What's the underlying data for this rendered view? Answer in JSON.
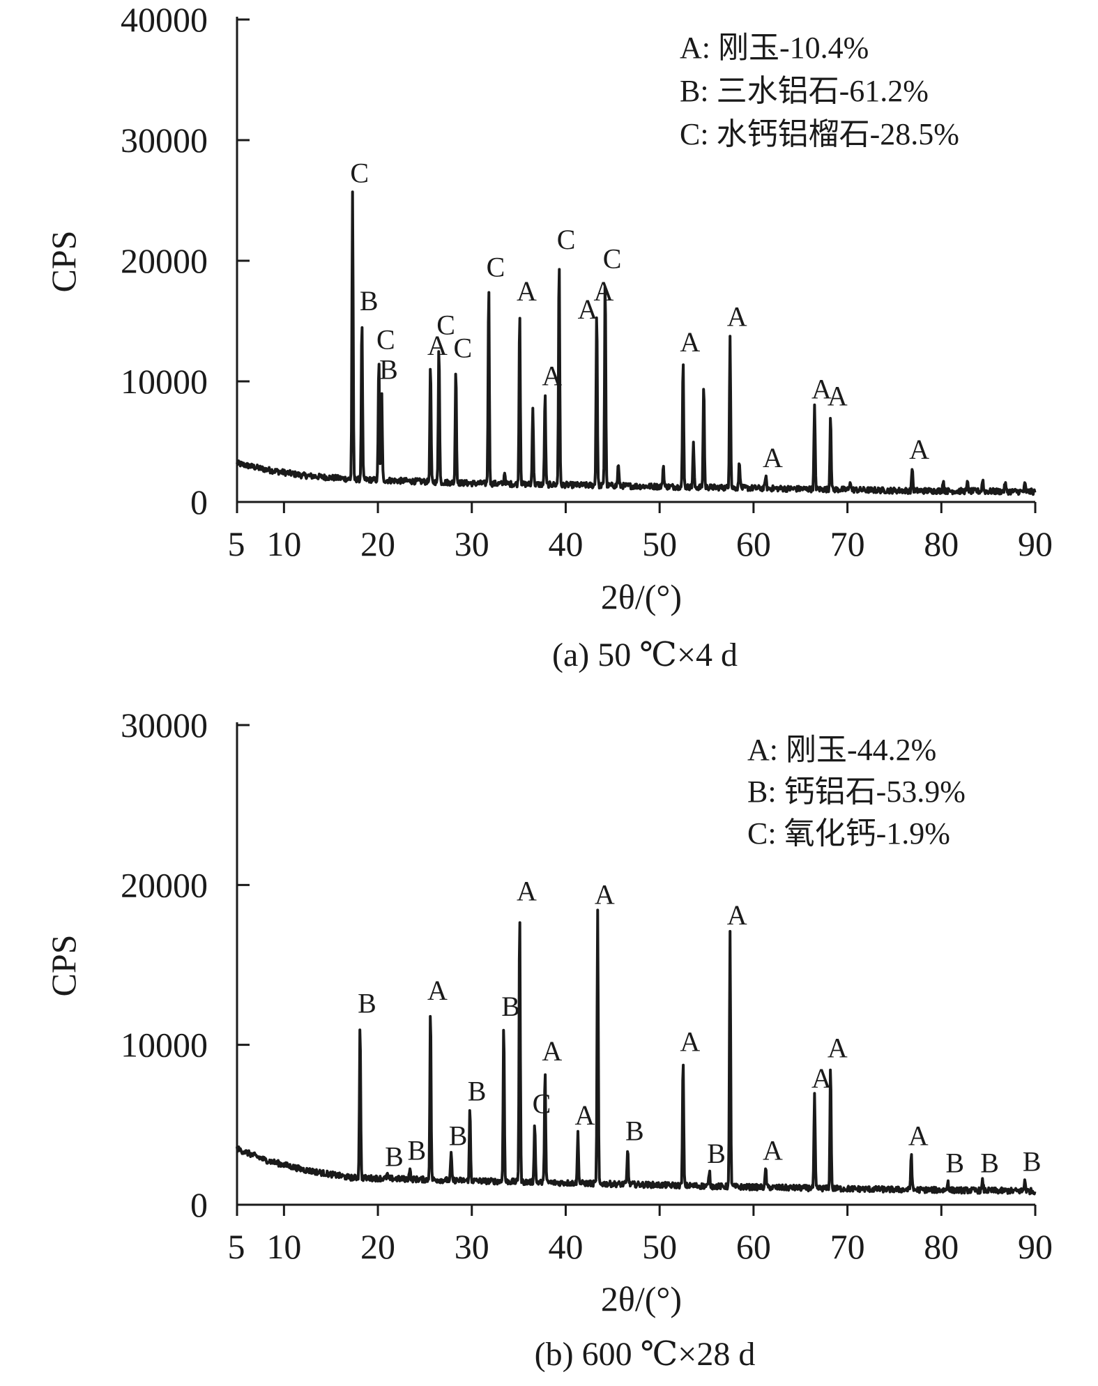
{
  "chart_data": [
    {
      "type": "line",
      "caption": "(a) 50 ℃×4 d",
      "xlabel": "2θ/(°)",
      "ylabel": "CPS",
      "xlim": [
        5,
        90
      ],
      "ylim": [
        0,
        40000
      ],
      "xticks": [
        5,
        10,
        20,
        30,
        40,
        50,
        60,
        70,
        80,
        90
      ],
      "yticks": [
        0,
        10000,
        20000,
        30000,
        40000
      ],
      "legend_position": "top-right",
      "legend": [
        "A: 刚玉-10.4%",
        "B: 三水铝石-61.2%",
        "C: 水钙铝榴石-28.5%"
      ],
      "background": [
        [
          5,
          3200
        ],
        [
          8,
          2700
        ],
        [
          12,
          2200
        ],
        [
          17,
          1900
        ],
        [
          30,
          1550
        ],
        [
          45,
          1350
        ],
        [
          60,
          1150
        ],
        [
          75,
          950
        ],
        [
          90,
          850
        ]
      ],
      "peaks": [
        {
          "x": 17.3,
          "y": 25800,
          "label": "C"
        },
        {
          "x": 18.3,
          "y": 15200,
          "label": "B"
        },
        {
          "x": 20.1,
          "y": 12000,
          "label": "C"
        },
        {
          "x": 20.4,
          "y": 9500,
          "label": "B"
        },
        {
          "x": 25.6,
          "y": 11500,
          "label": "A"
        },
        {
          "x": 26.5,
          "y": 13200,
          "label": "C"
        },
        {
          "x": 28.3,
          "y": 11300,
          "label": "C"
        },
        {
          "x": 31.8,
          "y": 18000,
          "label": "C"
        },
        {
          "x": 33.5,
          "y": 2500,
          "label": ""
        },
        {
          "x": 35.1,
          "y": 16000,
          "label": "A"
        },
        {
          "x": 36.5,
          "y": 8000,
          "label": ""
        },
        {
          "x": 37.8,
          "y": 9000,
          "label": "A"
        },
        {
          "x": 39.3,
          "y": 20300,
          "label": "C"
        },
        {
          "x": 43.3,
          "y": 16000,
          "label": "A"
        },
        {
          "x": 44.2,
          "y": 18700,
          "label": "C"
        },
        {
          "x": 45.6,
          "y": 3200,
          "label": ""
        },
        {
          "x": 50.4,
          "y": 3000,
          "label": ""
        },
        {
          "x": 52.5,
          "y": 11800,
          "label": "A"
        },
        {
          "x": 53.6,
          "y": 4800,
          "label": ""
        },
        {
          "x": 54.7,
          "y": 9900,
          "label": ""
        },
        {
          "x": 57.5,
          "y": 13900,
          "label": "A"
        },
        {
          "x": 58.5,
          "y": 3400,
          "label": ""
        },
        {
          "x": 61.3,
          "y": 2200,
          "label": "A"
        },
        {
          "x": 66.5,
          "y": 7900,
          "label": "A"
        },
        {
          "x": 68.2,
          "y": 7300,
          "label": "A"
        },
        {
          "x": 70.3,
          "y": 1800,
          "label": ""
        },
        {
          "x": 76.9,
          "y": 2900,
          "label": "A"
        },
        {
          "x": 80.2,
          "y": 1800,
          "label": ""
        },
        {
          "x": 82.8,
          "y": 1700,
          "label": ""
        },
        {
          "x": 84.4,
          "y": 1900,
          "label": ""
        },
        {
          "x": 86.8,
          "y": 1600,
          "label": ""
        },
        {
          "x": 88.9,
          "y": 1500,
          "label": ""
        }
      ],
      "extra_labels": [
        {
          "x": 41.6,
          "y": 14500,
          "label": "A"
        }
      ]
    },
    {
      "type": "line",
      "caption": "(b) 600 ℃×28 d",
      "xlabel": "2θ/(°)",
      "ylabel": "CPS",
      "xlim": [
        5,
        90
      ],
      "ylim": [
        0,
        30000
      ],
      "xticks": [
        5,
        10,
        20,
        30,
        40,
        50,
        60,
        70,
        80,
        90
      ],
      "yticks": [
        0,
        10000,
        20000,
        30000
      ],
      "legend_position": "top-right",
      "legend": [
        "A: 刚玉-44.2%",
        "B: 钙铝石-53.9%",
        "C: 氧化钙-1.9%"
      ],
      "background": [
        [
          5,
          3500
        ],
        [
          8,
          2800
        ],
        [
          12,
          2200
        ],
        [
          17,
          1700
        ],
        [
          30,
          1500
        ],
        [
          45,
          1300
        ],
        [
          60,
          1100
        ],
        [
          75,
          950
        ],
        [
          90,
          850
        ]
      ],
      "peaks": [
        {
          "x": 18.1,
          "y": 11500,
          "label": "B"
        },
        {
          "x": 21.0,
          "y": 1900,
          "label": "B"
        },
        {
          "x": 23.4,
          "y": 2300,
          "label": "B"
        },
        {
          "x": 25.6,
          "y": 12300,
          "label": "A"
        },
        {
          "x": 27.8,
          "y": 3200,
          "label": "B"
        },
        {
          "x": 29.8,
          "y": 6000,
          "label": "B"
        },
        {
          "x": 33.4,
          "y": 11300,
          "label": "B"
        },
        {
          "x": 35.1,
          "y": 18500,
          "label": "A"
        },
        {
          "x": 36.7,
          "y": 5200,
          "label": "C"
        },
        {
          "x": 37.8,
          "y": 8500,
          "label": "A"
        },
        {
          "x": 41.3,
          "y": 4500,
          "label": "A"
        },
        {
          "x": 43.4,
          "y": 18300,
          "label": "A"
        },
        {
          "x": 46.6,
          "y": 3500,
          "label": "B"
        },
        {
          "x": 52.5,
          "y": 9100,
          "label": "A"
        },
        {
          "x": 55.3,
          "y": 2100,
          "label": "B"
        },
        {
          "x": 57.5,
          "y": 17000,
          "label": "A"
        },
        {
          "x": 61.3,
          "y": 2300,
          "label": "A"
        },
        {
          "x": 66.5,
          "y": 6800,
          "label": "A"
        },
        {
          "x": 68.2,
          "y": 8700,
          "label": "A"
        },
        {
          "x": 76.8,
          "y": 3200,
          "label": "A"
        },
        {
          "x": 80.7,
          "y": 1500,
          "label": "B"
        },
        {
          "x": 84.4,
          "y": 1500,
          "label": "B"
        },
        {
          "x": 88.9,
          "y": 1600,
          "label": "B"
        }
      ]
    }
  ]
}
